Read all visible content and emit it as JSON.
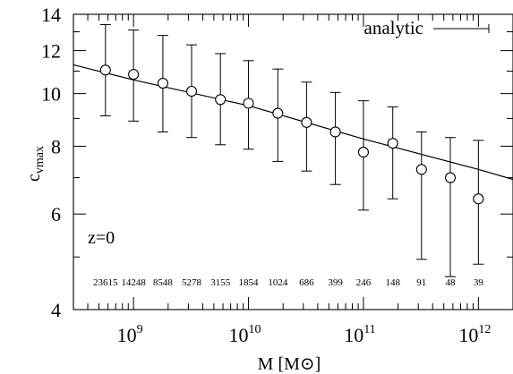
{
  "chart_data": {
    "type": "scatter",
    "xlabel": "M [M⊙]",
    "ylabel_main": "c",
    "ylabel_sub": "vmax",
    "annotation": "z=0",
    "x_log": true,
    "y_log": true,
    "xlim": [
      300000000,
      2000000000000
    ],
    "ylim": [
      4,
      14
    ],
    "x_ticks": [
      {
        "value": 1000000000,
        "base": "10",
        "exp": "9"
      },
      {
        "value": 10000000000,
        "base": "10",
        "exp": "10"
      },
      {
        "value": 100000000000,
        "base": "10",
        "exp": "11"
      },
      {
        "value": 1000000000000,
        "base": "10",
        "exp": "12"
      }
    ],
    "y_ticks": [
      {
        "value": 4,
        "label": "4"
      },
      {
        "value": 6,
        "label": "6"
      },
      {
        "value": 8,
        "label": "8"
      },
      {
        "value": 10,
        "label": "10"
      },
      {
        "value": 12,
        "label": "12"
      },
      {
        "value": 14,
        "label": "14"
      }
    ],
    "legend": {
      "label": "analytic",
      "position": "top-right"
    },
    "series": [
      {
        "type": "scatter-errorbar",
        "marker": "open-circle",
        "points": [
          {
            "x": 570000000,
            "y": 11.05,
            "ylow": 9.1,
            "yhigh": 13.4,
            "count": "23615"
          },
          {
            "x": 1000000000,
            "y": 10.85,
            "ylow": 8.9,
            "yhigh": 13.1,
            "count": "14248"
          },
          {
            "x": 1800000000,
            "y": 10.45,
            "ylow": 8.5,
            "yhigh": 12.8,
            "count": "8548"
          },
          {
            "x": 3200000000,
            "y": 10.1,
            "ylow": 8.3,
            "yhigh": 12.3,
            "count": "5278"
          },
          {
            "x": 5700000000,
            "y": 9.75,
            "ylow": 8.05,
            "yhigh": 11.85,
            "count": "3155"
          },
          {
            "x": 10000000000,
            "y": 9.6,
            "ylow": 7.9,
            "yhigh": 11.5,
            "count": "1854"
          },
          {
            "x": 18000000000,
            "y": 9.2,
            "ylow": 7.5,
            "yhigh": 11.1,
            "count": "1024"
          },
          {
            "x": 32000000000,
            "y": 8.85,
            "ylow": 7.2,
            "yhigh": 10.5,
            "count": "686"
          },
          {
            "x": 57000000000,
            "y": 8.5,
            "ylow": 6.8,
            "yhigh": 10.05,
            "count": "399"
          },
          {
            "x": 100000000000,
            "y": 7.8,
            "ylow": 6.1,
            "yhigh": 9.7,
            "count": "246"
          },
          {
            "x": 180000000000,
            "y": 8.1,
            "ylow": 6.4,
            "yhigh": 9.45,
            "count": "148"
          },
          {
            "x": 320000000000,
            "y": 7.25,
            "ylow": 4.95,
            "yhigh": 8.5,
            "count": "91"
          },
          {
            "x": 570000000000,
            "y": 7.0,
            "ylow": 4.6,
            "yhigh": 8.3,
            "count": "48"
          },
          {
            "x": 1000000000000,
            "y": 6.4,
            "ylow": 4.85,
            "yhigh": 8.2,
            "count": "39"
          }
        ]
      },
      {
        "name": "analytic",
        "type": "line",
        "points": [
          {
            "x": 300000000,
            "y": 11.3
          },
          {
            "x": 1000000000,
            "y": 10.6
          },
          {
            "x": 10000000000,
            "y": 9.5
          },
          {
            "x": 100000000000,
            "y": 8.25
          },
          {
            "x": 1000000000000,
            "y": 7.25
          },
          {
            "x": 2000000000000,
            "y": 6.95
          }
        ]
      }
    ]
  }
}
